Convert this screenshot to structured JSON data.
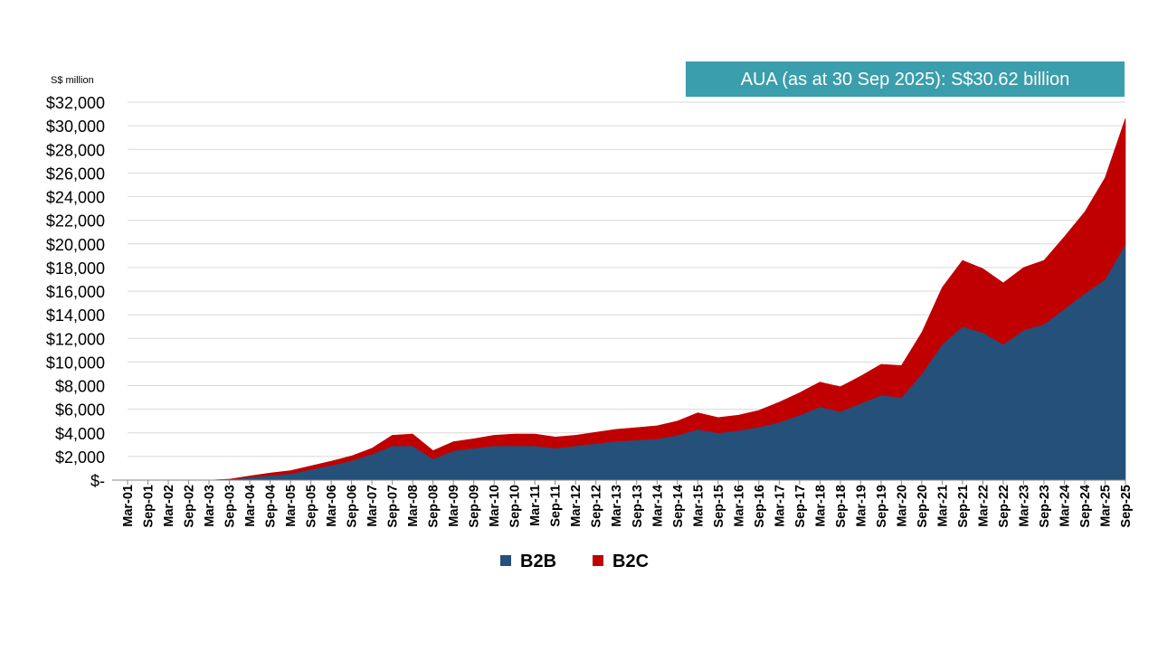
{
  "chart_data": {
    "type": "area",
    "stacked": true,
    "unit_label": "S$ million",
    "callout": "AUA (as at 30 Sep 2025): S$30.62 billion",
    "x_tick_labels": [
      "Mar-01",
      "Sep-01",
      "Mar-02",
      "Sep-02",
      "Mar-03",
      "Sep-03",
      "Mar-04",
      "Sep-04",
      "Mar-05",
      "Sep-05",
      "Mar-06",
      "Sep-06",
      "Mar-07",
      "Sep-07",
      "Mar-08",
      "Sep-08",
      "Mar-09",
      "Sep-09",
      "Mar-10",
      "Sep-10",
      "Mar-11",
      "Sep-11",
      "Mar-12",
      "Sep-12",
      "Mar-13",
      "Sep-13",
      "Mar-14",
      "Sep-14",
      "Mar-15",
      "Sep-15",
      "Mar-16",
      "Sep-16",
      "Mar-17",
      "Sep-17",
      "Mar-18",
      "Sep-18",
      "Mar-19",
      "Sep-19",
      "Mar-20",
      "Sep-20",
      "Mar-21",
      "Sep-21",
      "Mar-22",
      "Sep-22",
      "Mar-23",
      "Sep-23",
      "Mar-24",
      "Sep-24",
      "Mar-25",
      "Sep-25"
    ],
    "y_tick_labels": [
      "$-",
      "$2,000",
      "$4,000",
      "$6,000",
      "$8,000",
      "$10,000",
      "$12,000",
      "$14,000",
      "$16,000",
      "$18,000",
      "$20,000",
      "$22,000",
      "$24,000",
      "$26,000",
      "$28,000",
      "$30,000",
      "$32,000"
    ],
    "ylim": [
      0,
      32000
    ],
    "grid": "horizontal",
    "legend_position": "bottom",
    "series": [
      {
        "name": "B2B",
        "color": "#24507a",
        "values": [
          0,
          0,
          0,
          0,
          0,
          50,
          250,
          400,
          550,
          900,
          1250,
          1650,
          2200,
          2900,
          2900,
          1800,
          2500,
          2700,
          2900,
          2900,
          2900,
          2700,
          2900,
          3100,
          3300,
          3400,
          3500,
          3800,
          4300,
          4000,
          4200,
          4500,
          4900,
          5500,
          6200,
          5800,
          6500,
          7200,
          7000,
          9000,
          11500,
          13000,
          12500,
          11500,
          12700,
          13200,
          14500,
          15800,
          17000,
          20000
        ]
      },
      {
        "name": "B2C",
        "color": "#c00000",
        "values": [
          0,
          0,
          0,
          0,
          0,
          30,
          100,
          200,
          250,
          300,
          350,
          400,
          500,
          900,
          1000,
          700,
          750,
          800,
          900,
          1000,
          1000,
          950,
          900,
          950,
          1000,
          1050,
          1100,
          1200,
          1400,
          1300,
          1300,
          1400,
          1700,
          1900,
          2100,
          2100,
          2300,
          2600,
          2700,
          3500,
          4800,
          5600,
          5400,
          5200,
          5300,
          5400,
          6100,
          6900,
          8600,
          10620
        ]
      }
    ]
  }
}
